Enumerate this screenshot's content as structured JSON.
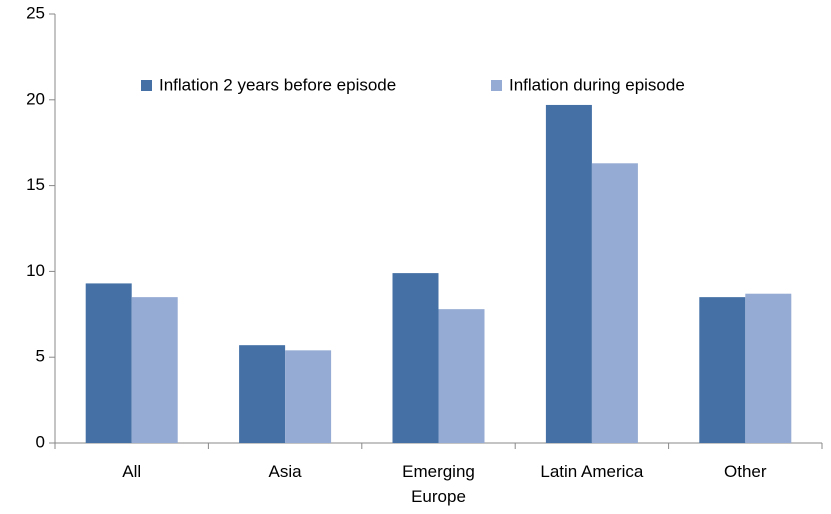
{
  "chart_data": {
    "type": "bar",
    "categories": [
      "All",
      "Asia",
      "Emerging Europe",
      "Latin America",
      "Other"
    ],
    "series": [
      {
        "name": "Inflation 2 years before episode",
        "color": "#4470a5",
        "values": [
          9.3,
          5.7,
          9.9,
          19.7,
          8.5
        ]
      },
      {
        "name": "Inflation during episode",
        "color": "#95abd3",
        "values": [
          8.5,
          5.4,
          7.8,
          16.3,
          8.7
        ]
      }
    ],
    "ylim": [
      0,
      25
    ],
    "yticks": [
      0,
      5,
      10,
      15,
      20,
      25
    ],
    "grid": false,
    "legend": "top"
  }
}
